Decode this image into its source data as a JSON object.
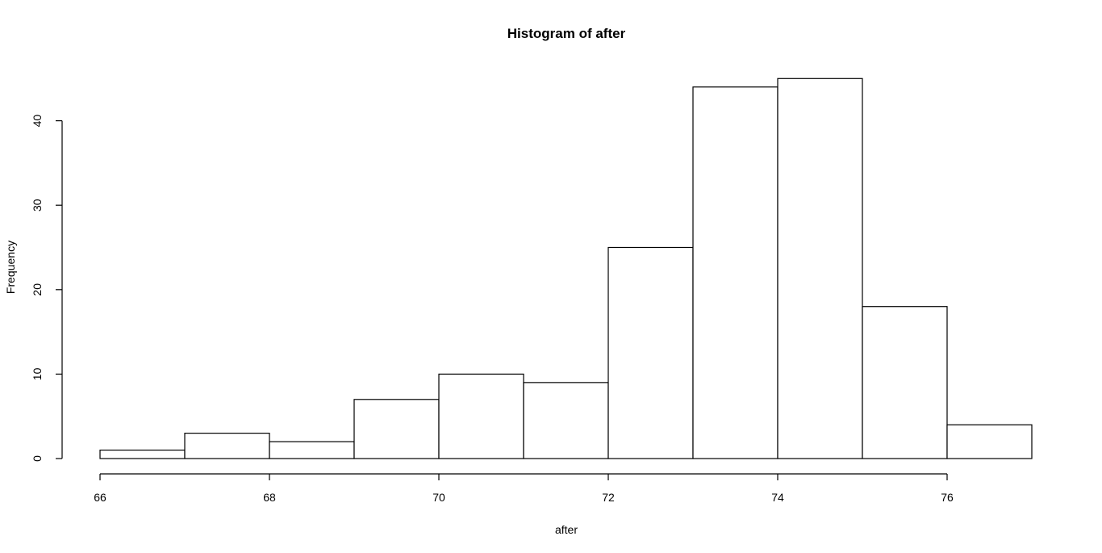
{
  "chart_data": {
    "type": "bar",
    "title": "Histogram of after",
    "xlabel": "after",
    "ylabel": "Frequency",
    "bins": [
      {
        "from": 66,
        "to": 67,
        "count": 1
      },
      {
        "from": 67,
        "to": 68,
        "count": 3
      },
      {
        "from": 68,
        "to": 69,
        "count": 2
      },
      {
        "from": 69,
        "to": 70,
        "count": 7
      },
      {
        "from": 70,
        "to": 71,
        "count": 10
      },
      {
        "from": 71,
        "to": 72,
        "count": 9
      },
      {
        "from": 72,
        "to": 73,
        "count": 25
      },
      {
        "from": 73,
        "to": 74,
        "count": 44
      },
      {
        "from": 74,
        "to": 75,
        "count": 45
      },
      {
        "from": 75,
        "to": 76,
        "count": 18
      },
      {
        "from": 76,
        "to": 77,
        "count": 4
      }
    ],
    "xlim": [
      66,
      77
    ],
    "ylim": [
      0,
      45
    ],
    "x_ticks": [
      66,
      68,
      70,
      72,
      74,
      76
    ],
    "y_ticks": [
      0,
      10,
      20,
      30,
      40
    ],
    "x_tick_labels": [
      "66",
      "68",
      "70",
      "72",
      "74",
      "76"
    ],
    "y_tick_labels": [
      "0",
      "10",
      "20",
      "30",
      "40"
    ],
    "grid": false,
    "legend": "none"
  }
}
